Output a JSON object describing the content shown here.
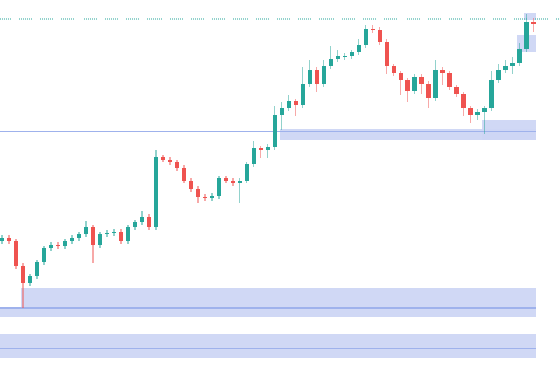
{
  "chart_data": {
    "type": "candlestick",
    "ylim": [
      0,
      526
    ],
    "up_color": "#26a69a",
    "down_color": "#ef5350",
    "zone_color": "#cdd6f4",
    "open": [
      181,
      186,
      181,
      146,
      121,
      131,
      151,
      171,
      176,
      174,
      181,
      186,
      191,
      201,
      176,
      191,
      193,
      194,
      181,
      201,
      208,
      216,
      201,
      301,
      298,
      294,
      286,
      268,
      256,
      244,
      243,
      246,
      271,
      268,
      264,
      268,
      291,
      314,
      311,
      316,
      361,
      371,
      381,
      376,
      406,
      426,
      406,
      431,
      441,
      446,
      446,
      451,
      461,
      484,
      483,
      466,
      431,
      421,
      411,
      396,
      416,
      406,
      386,
      426,
      421,
      401,
      391,
      371,
      361,
      366,
      371,
      411,
      426,
      431,
      436,
      456,
      494
    ],
    "high": [
      190,
      190,
      185,
      150,
      135,
      155,
      175,
      180,
      180,
      185,
      190,
      195,
      210,
      205,
      195,
      197,
      198,
      198,
      205,
      212,
      225,
      220,
      312,
      305,
      302,
      298,
      290,
      272,
      260,
      248,
      250,
      275,
      275,
      272,
      272,
      295,
      325,
      318,
      320,
      375,
      380,
      390,
      385,
      430,
      440,
      430,
      440,
      460,
      455,
      450,
      455,
      470,
      490,
      490,
      487,
      470,
      435,
      425,
      415,
      420,
      420,
      410,
      440,
      430,
      425,
      405,
      395,
      375,
      370,
      375,
      425,
      435,
      440,
      445,
      465,
      506,
      500
    ],
    "low": [
      177,
      177,
      142,
      86,
      117,
      127,
      147,
      167,
      170,
      170,
      177,
      182,
      187,
      150,
      172,
      187,
      189,
      177,
      177,
      197,
      204,
      197,
      197,
      294,
      290,
      282,
      264,
      252,
      236,
      239,
      239,
      242,
      264,
      260,
      236,
      264,
      287,
      300,
      300,
      312,
      340,
      367,
      360,
      372,
      402,
      395,
      402,
      427,
      437,
      440,
      442,
      447,
      457,
      479,
      462,
      420,
      417,
      390,
      380,
      392,
      392,
      372,
      382,
      405,
      397,
      387,
      360,
      350,
      355,
      335,
      367,
      407,
      422,
      420,
      432,
      452,
      480
    ],
    "close": [
      186,
      181,
      146,
      121,
      131,
      151,
      171,
      176,
      174,
      181,
      186,
      191,
      201,
      176,
      191,
      193,
      194,
      181,
      201,
      208,
      216,
      201,
      301,
      298,
      294,
      286,
      268,
      256,
      244,
      243,
      246,
      271,
      268,
      264,
      268,
      291,
      314,
      311,
      316,
      361,
      371,
      381,
      376,
      406,
      426,
      406,
      431,
      441,
      446,
      446,
      451,
      461,
      484,
      483,
      466,
      431,
      421,
      411,
      396,
      416,
      406,
      386,
      426,
      421,
      401,
      391,
      371,
      361,
      366,
      371,
      411,
      426,
      431,
      436,
      456,
      494,
      491
    ],
    "zones": [
      {
        "start": 75,
        "top": 508,
        "bottom": 498
      },
      {
        "start": 74,
        "top": 476,
        "bottom": 451
      },
      {
        "start": 69,
        "top": 354,
        "bottom": 326
      },
      {
        "start": 40,
        "top": 341,
        "bottom": 326
      },
      {
        "start": 3,
        "top": 114,
        "bottom": 86
      },
      {
        "start": 0,
        "top": 86,
        "bottom": 73
      },
      {
        "start": 0,
        "top": 49,
        "bottom": 14
      }
    ],
    "levels": [
      {
        "value": 499,
        "color": "#26a69a",
        "dotted": true
      },
      {
        "value": 338,
        "color": "#9fb2ec",
        "dotted": false
      },
      {
        "value": 86,
        "color": "#9fb2ec",
        "dotted": false
      },
      {
        "value": 28,
        "color": "#9fb2ec",
        "dotted": false
      }
    ]
  }
}
